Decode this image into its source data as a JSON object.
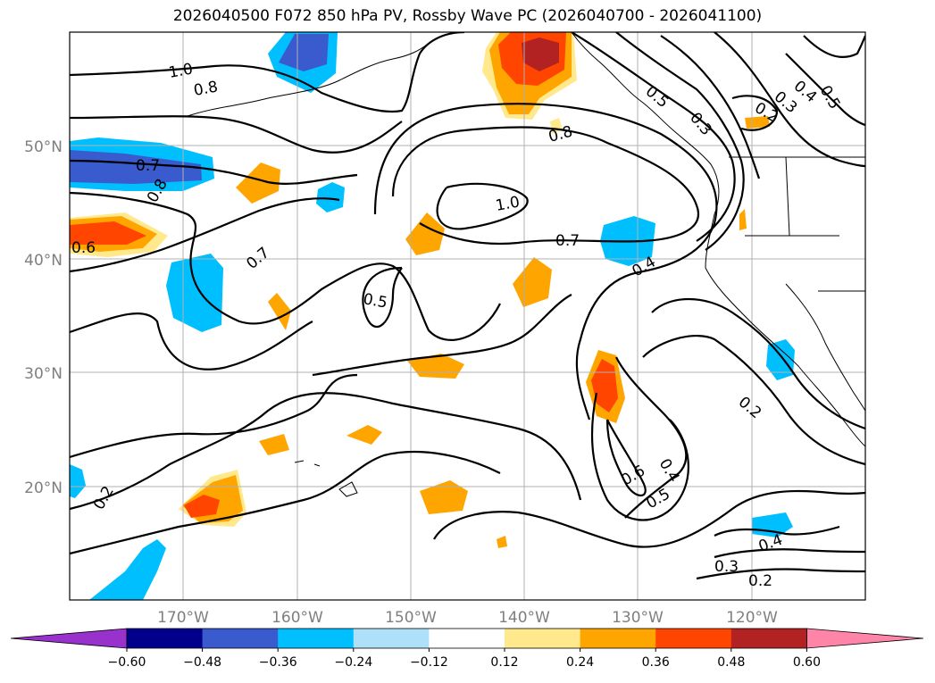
{
  "title": "2026040500 F072 850 hPa PV, Rossby Wave PC (2026040700 - 2026041100)",
  "latitude_labels": [
    "50°N",
    "40°N",
    "30°N",
    "20°N"
  ],
  "longitude_labels": [
    "170°W",
    "160°W",
    "150°W",
    "140°W",
    "130°W",
    "120°W"
  ],
  "colorbar": {
    "ticks": [
      "−0.60",
      "−0.48",
      "−0.36",
      "−0.24",
      "−0.12",
      "0.12",
      "0.24",
      "0.36",
      "0.48",
      "0.60"
    ],
    "colors": [
      "#9932cc",
      "#00008b",
      "#3a5bcd",
      "#00bfff",
      "#afe0fa",
      "#ffffff",
      "#ffe98c",
      "#ffa500",
      "#ff4500",
      "#b22222",
      "#ff85a8"
    ]
  },
  "contour_labels": [
    "1.0",
    "0.8",
    "0.7",
    "0.8",
    "0.6",
    "0.7",
    "0.5",
    "1.0",
    "0.7",
    "0.4",
    "0.8",
    "0.5",
    "0.3",
    "0.2",
    "0.3",
    "0.4",
    "0.5",
    "0.2",
    "0.6",
    "0.5",
    "0.4",
    "0.4",
    "0.3",
    "0.2",
    "0.2"
  ],
  "chart_data": {
    "type": "map",
    "title": "2026040500 F072 850 hPa PV, Rossby Wave PC (2026040700 - 2026041100)",
    "variables": [
      "850 hPa PV (contours)",
      "Rossby Wave PC (shading)"
    ],
    "lat_range": [
      10,
      60
    ],
    "lon_range": [
      -180,
      -110
    ],
    "colorbar_levels": [
      -0.6,
      -0.48,
      -0.36,
      -0.24,
      -0.12,
      0.12,
      0.24,
      0.36,
      0.48,
      0.6
    ]
  }
}
